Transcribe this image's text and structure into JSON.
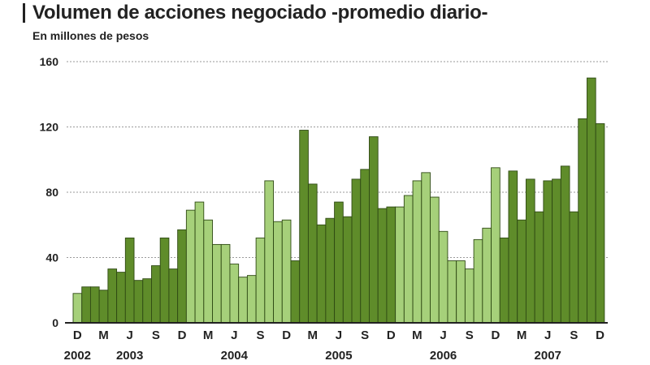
{
  "chart_data": {
    "type": "bar",
    "title": "Volumen de acciones negociado -promedio diario-",
    "subtitle": "En millones de pesos",
    "ylim": [
      0,
      160
    ],
    "yticks": [
      0,
      40,
      80,
      120,
      160
    ],
    "grid": true,
    "x_month_labels": [
      "D",
      "M",
      "J",
      "S",
      "D",
      "M",
      "J",
      "S",
      "D",
      "M",
      "J",
      "S",
      "D",
      "M",
      "J",
      "S",
      "D",
      "M",
      "J",
      "S",
      "D"
    ],
    "x_year_labels": [
      "2002",
      "2003",
      "2004",
      "2005",
      "2006",
      "2007"
    ],
    "colors": {
      "dark": "#5f8c2a",
      "light": "#a6d07a",
      "stroke": "#2f4a14"
    },
    "values": [
      18,
      22,
      22,
      20,
      33,
      31,
      52,
      26,
      27,
      35,
      52,
      33,
      57,
      69,
      74,
      63,
      48,
      48,
      36,
      28,
      29,
      52,
      87,
      62,
      63,
      38,
      118,
      85,
      60,
      64,
      74,
      65,
      88,
      94,
      114,
      70,
      71,
      71,
      78,
      87,
      92,
      77,
      56,
      38,
      38,
      33,
      51,
      58,
      95,
      52,
      93,
      63,
      88,
      68,
      87,
      88,
      96,
      68,
      125,
      150,
      122
    ],
    "shades": [
      "light",
      "dark",
      "dark",
      "dark",
      "dark",
      "dark",
      "dark",
      "dark",
      "dark",
      "dark",
      "dark",
      "dark",
      "dark",
      "light",
      "light",
      "light",
      "light",
      "light",
      "light",
      "light",
      "light",
      "light",
      "light",
      "light",
      "light",
      "dark",
      "dark",
      "dark",
      "dark",
      "dark",
      "dark",
      "dark",
      "dark",
      "dark",
      "dark",
      "dark",
      "dark",
      "light",
      "light",
      "light",
      "light",
      "light",
      "light",
      "light",
      "light",
      "light",
      "light",
      "light",
      "light",
      "dark",
      "dark",
      "dark",
      "dark",
      "dark",
      "dark",
      "dark",
      "dark",
      "dark",
      "dark",
      "dark",
      "dark"
    ]
  }
}
